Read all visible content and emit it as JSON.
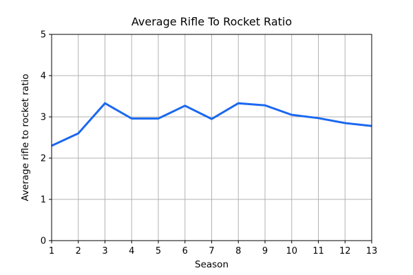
{
  "chart_data": {
    "type": "line",
    "title": "Average Rifle To Rocket Ratio",
    "xlabel": "Season",
    "ylabel": "Average rifle to rocket ratio",
    "x": [
      1,
      2,
      3,
      4,
      5,
      6,
      7,
      8,
      9,
      10,
      11,
      12,
      13
    ],
    "values": [
      2.3,
      2.6,
      3.33,
      2.96,
      2.96,
      3.27,
      2.95,
      3.33,
      3.28,
      3.05,
      2.97,
      2.85,
      2.78
    ],
    "series_name": "Average rifle to rocket ratio",
    "xticks": [
      1,
      2,
      3,
      4,
      5,
      6,
      7,
      8,
      9,
      10,
      11,
      12,
      13
    ],
    "yticks": [
      0,
      1,
      2,
      3,
      4,
      5
    ],
    "xlim": [
      1,
      13
    ],
    "ylim": [
      0,
      5
    ],
    "grid": true,
    "legend_position": "none",
    "line_color": "#1a68f0",
    "grid_color": "#b2b2b2",
    "spine_color": "#000000",
    "background_color": "#ffffff"
  }
}
